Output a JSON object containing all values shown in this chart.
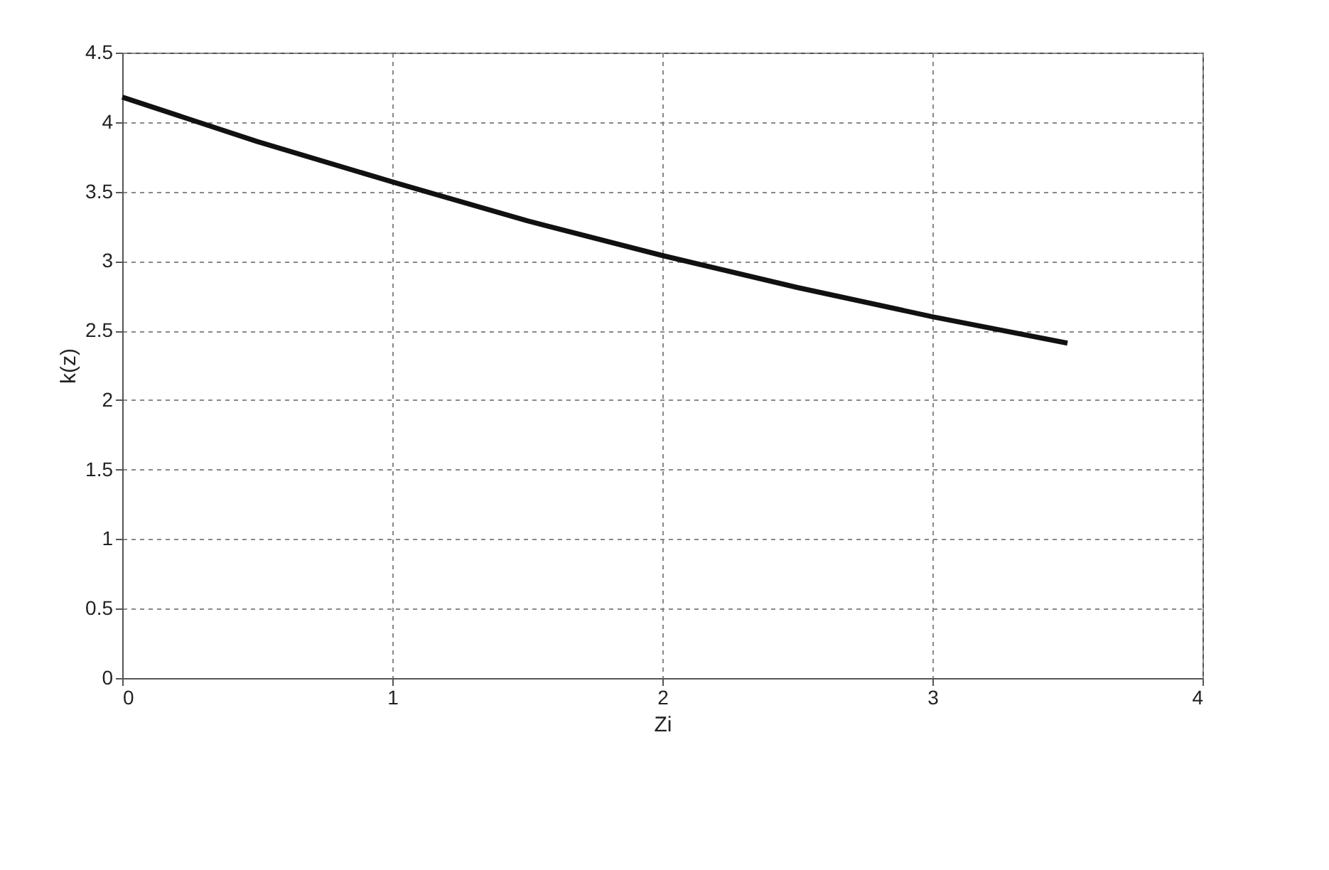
{
  "chart_data": {
    "type": "line",
    "xlabel": "Zi",
    "ylabel": "k(z)",
    "series": [
      {
        "color": "#111111",
        "x": [
          0,
          0.5,
          1,
          1.5,
          2,
          2.5,
          3,
          3.5
        ],
        "values": [
          4.18,
          3.86,
          3.57,
          3.29,
          3.04,
          2.81,
          2.6,
          2.41
        ]
      }
    ],
    "xlim": [
      0,
      4
    ],
    "xticks": [
      0,
      1,
      2,
      3,
      4
    ],
    "ylim": [
      0,
      4.5
    ],
    "yticks": [
      0,
      0.5,
      1,
      1.5,
      2,
      2.5,
      3,
      3.5,
      4,
      4.5
    ],
    "grid": true,
    "line_style": "solid",
    "marker": "none"
  }
}
